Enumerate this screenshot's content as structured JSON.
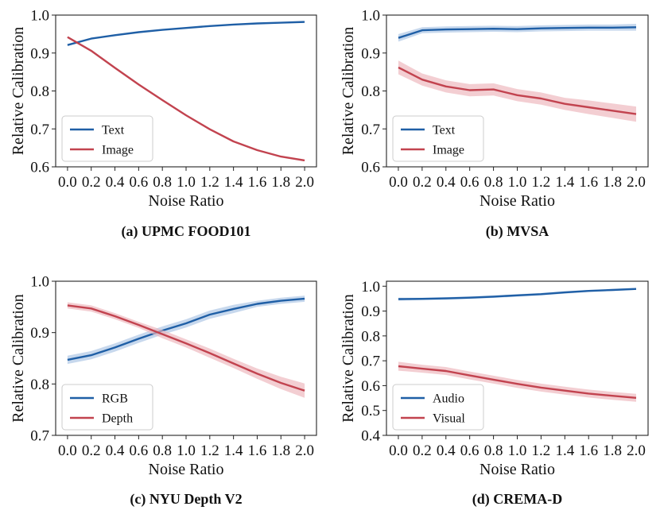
{
  "colors": {
    "series_a": "#1f5fa6",
    "series_b": "#c2434f",
    "band_a": "#a9c3e3",
    "band_b": "#ecb3ba"
  },
  "chart_data": [
    {
      "type": "line",
      "caption": "(a) UPMC FOOD101",
      "xlabel": "Noise Ratio",
      "ylabel": "Relative Calibration",
      "xlim": [
        -0.1,
        2.1
      ],
      "ylim": [
        0.6,
        1.0
      ],
      "yticks": [
        0.6,
        0.7,
        0.8,
        0.9,
        1.0
      ],
      "ytick_labels": [
        "0.6",
        "0.7",
        "0.8",
        "0.9",
        "1.0"
      ],
      "legend_position": "lower-left",
      "x": [
        0.0,
        0.2,
        0.4,
        0.6,
        0.8,
        1.0,
        1.2,
        1.4,
        1.6,
        1.8,
        2.0
      ],
      "xtick_labels": [
        "0.0",
        "0.2",
        "0.4",
        "0.6",
        "0.8",
        "1.0",
        "1.2",
        "1.4",
        "1.6",
        "1.8",
        "2.0"
      ],
      "series": [
        {
          "name": "Text",
          "values": [
            0.921,
            0.938,
            0.947,
            0.955,
            0.961,
            0.966,
            0.971,
            0.975,
            0.978,
            0.98,
            0.982
          ],
          "band": [
            0.001,
            0.001,
            0.001,
            0.001,
            0.001,
            0.001,
            0.001,
            0.001,
            0.001,
            0.001,
            0.001
          ]
        },
        {
          "name": "Image",
          "values": [
            0.942,
            0.906,
            0.861,
            0.817,
            0.776,
            0.736,
            0.699,
            0.667,
            0.644,
            0.627,
            0.617
          ],
          "band": [
            0.001,
            0.001,
            0.001,
            0.001,
            0.001,
            0.001,
            0.001,
            0.001,
            0.001,
            0.001,
            0.001
          ]
        }
      ]
    },
    {
      "type": "line",
      "caption": "(b) MVSA",
      "xlabel": "Noise Ratio",
      "ylabel": "Relative Calibration",
      "xlim": [
        -0.1,
        2.1
      ],
      "ylim": [
        0.6,
        1.0
      ],
      "yticks": [
        0.6,
        0.7,
        0.8,
        0.9,
        1.0
      ],
      "ytick_labels": [
        "0.6",
        "0.7",
        "0.8",
        "0.9",
        "1.0"
      ],
      "legend_position": "lower-left",
      "x": [
        0.0,
        0.2,
        0.4,
        0.6,
        0.8,
        1.0,
        1.2,
        1.4,
        1.6,
        1.8,
        2.0
      ],
      "xtick_labels": [
        "0.0",
        "0.2",
        "0.4",
        "0.6",
        "0.8",
        "1.0",
        "1.2",
        "1.4",
        "1.6",
        "1.8",
        "2.0"
      ],
      "series": [
        {
          "name": "Text",
          "values": [
            0.94,
            0.96,
            0.962,
            0.963,
            0.964,
            0.963,
            0.965,
            0.966,
            0.967,
            0.967,
            0.968
          ],
          "band": [
            0.01,
            0.008,
            0.008,
            0.008,
            0.008,
            0.008,
            0.008,
            0.008,
            0.008,
            0.008,
            0.009
          ]
        },
        {
          "name": "Image",
          "values": [
            0.862,
            0.83,
            0.812,
            0.802,
            0.804,
            0.789,
            0.78,
            0.766,
            0.757,
            0.748,
            0.739
          ],
          "band": [
            0.018,
            0.016,
            0.016,
            0.016,
            0.016,
            0.016,
            0.016,
            0.016,
            0.018,
            0.019,
            0.02
          ]
        }
      ]
    },
    {
      "type": "line",
      "caption": "(c) NYU Depth V2",
      "xlabel": "Noise Ratio",
      "ylabel": "Relative Calibration",
      "xlim": [
        -0.1,
        2.1
      ],
      "ylim": [
        0.7,
        1.0
      ],
      "yticks": [
        0.7,
        0.8,
        0.9,
        1.0
      ],
      "ytick_labels": [
        "0.7",
        "0.8",
        "0.9",
        "1.0"
      ],
      "legend_position": "lower-left",
      "x": [
        0.0,
        0.2,
        0.4,
        0.6,
        0.8,
        1.0,
        1.2,
        1.4,
        1.6,
        1.8,
        2.0
      ],
      "xtick_labels": [
        "0.0",
        "0.2",
        "0.4",
        "0.6",
        "0.8",
        "1.0",
        "1.2",
        "1.4",
        "1.6",
        "1.8",
        "2.0"
      ],
      "series": [
        {
          "name": "RGB",
          "values": [
            0.847,
            0.856,
            0.871,
            0.888,
            0.904,
            0.918,
            0.935,
            0.946,
            0.956,
            0.962,
            0.966
          ],
          "band": [
            0.008,
            0.008,
            0.008,
            0.008,
            0.008,
            0.008,
            0.008,
            0.008,
            0.006,
            0.006,
            0.006
          ]
        },
        {
          "name": "Depth",
          "values": [
            0.953,
            0.947,
            0.932,
            0.915,
            0.897,
            0.879,
            0.86,
            0.84,
            0.82,
            0.802,
            0.787
          ],
          "band": [
            0.006,
            0.006,
            0.006,
            0.006,
            0.008,
            0.008,
            0.009,
            0.009,
            0.01,
            0.012,
            0.014
          ]
        }
      ]
    },
    {
      "type": "line",
      "caption": "(d) CREMA-D",
      "xlabel": "Noise Ratio",
      "ylabel": "Relative Calibration",
      "xlim": [
        -0.1,
        2.1
      ],
      "ylim": [
        0.4,
        1.02
      ],
      "yticks": [
        0.4,
        0.5,
        0.6,
        0.7,
        0.8,
        0.9,
        1.0
      ],
      "ytick_labels": [
        "0.4",
        "0.5",
        "0.6",
        "0.7",
        "0.8",
        "0.9",
        "1.0"
      ],
      "legend_position": "lower-left",
      "x": [
        0.0,
        0.2,
        0.4,
        0.6,
        0.8,
        1.0,
        1.2,
        1.4,
        1.6,
        1.8,
        2.0
      ],
      "xtick_labels": [
        "0.0",
        "0.2",
        "0.4",
        "0.6",
        "0.8",
        "1.0",
        "1.2",
        "1.4",
        "1.6",
        "1.8",
        "2.0"
      ],
      "series": [
        {
          "name": "Audio",
          "values": [
            0.948,
            0.949,
            0.951,
            0.954,
            0.958,
            0.963,
            0.968,
            0.975,
            0.981,
            0.985,
            0.989
          ],
          "band": [
            0.006,
            0.005,
            0.005,
            0.005,
            0.005,
            0.005,
            0.005,
            0.005,
            0.004,
            0.004,
            0.004
          ]
        },
        {
          "name": "Visual",
          "values": [
            0.678,
            0.668,
            0.659,
            0.641,
            0.624,
            0.607,
            0.592,
            0.58,
            0.568,
            0.559,
            0.551
          ],
          "band": [
            0.018,
            0.016,
            0.016,
            0.016,
            0.016,
            0.016,
            0.016,
            0.016,
            0.016,
            0.016,
            0.016
          ]
        }
      ]
    }
  ]
}
